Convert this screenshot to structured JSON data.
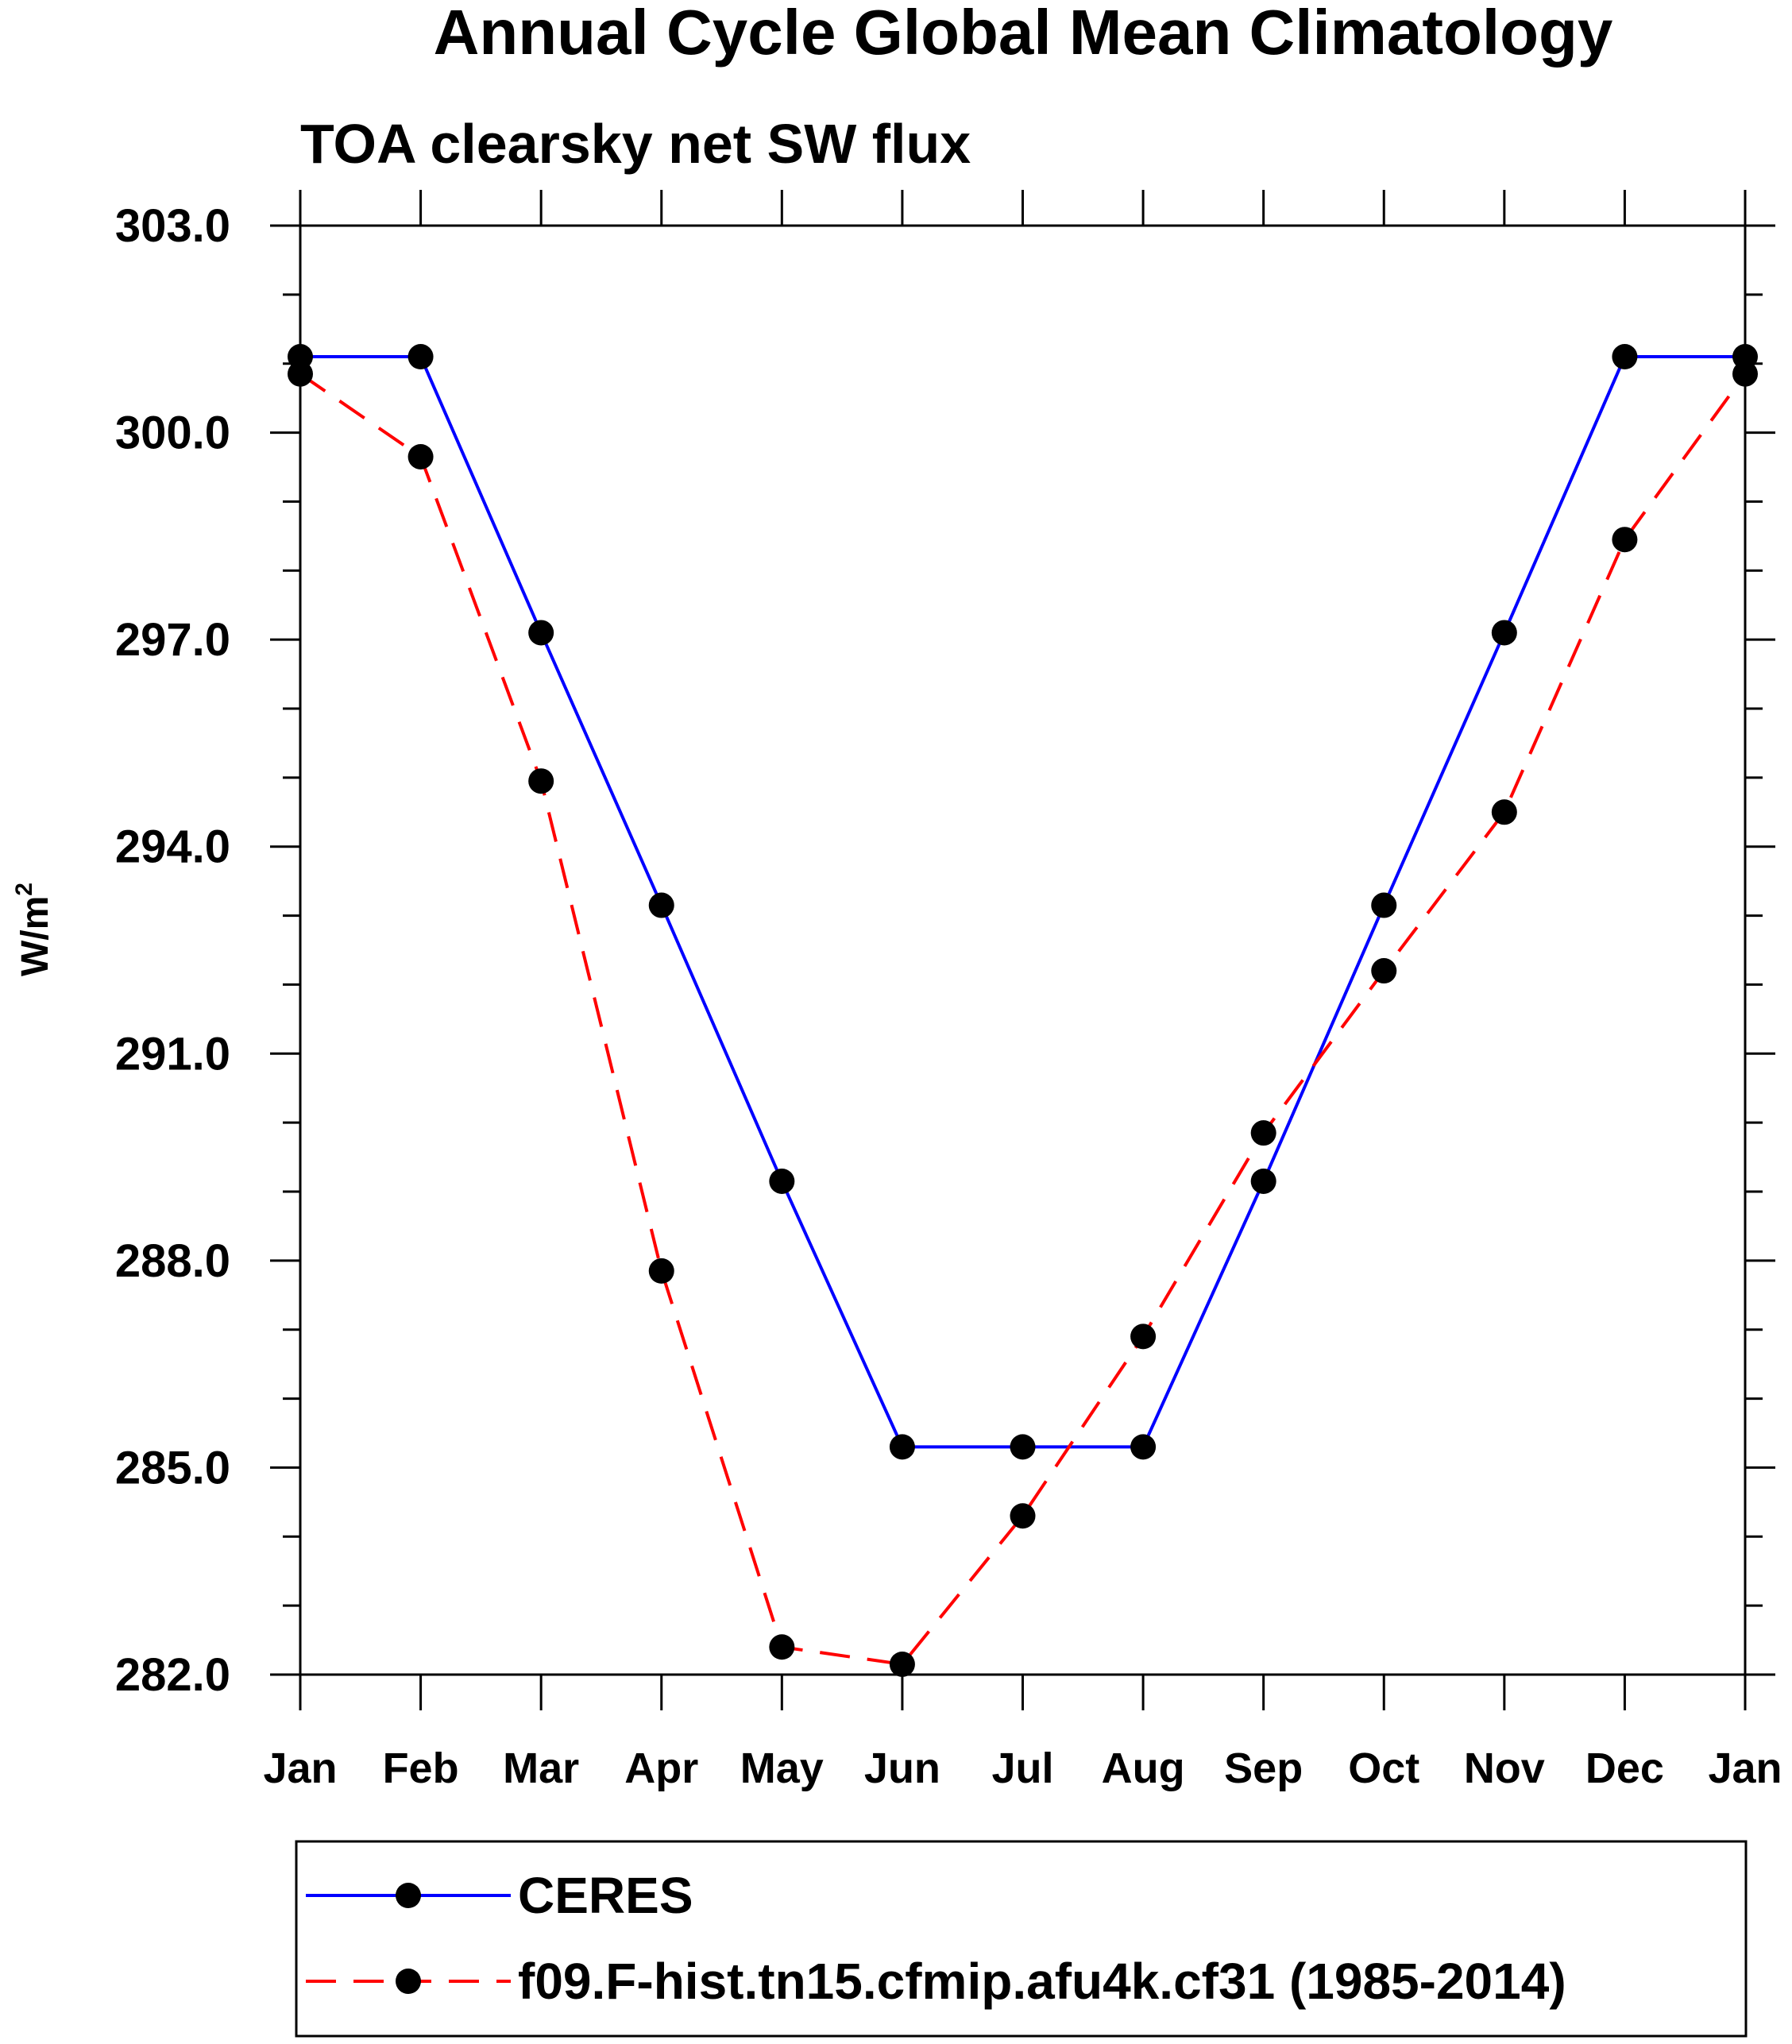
{
  "chart_data": {
    "type": "line",
    "title": "Annual Cycle Global Mean Climatology",
    "subtitle": "TOA clearsky net SW flux",
    "ylabel_base": "W/m",
    "ylabel_sup": "2",
    "xlabel": "",
    "categories": [
      "Jan",
      "Feb",
      "Mar",
      "Apr",
      "May",
      "Jun",
      "Jul",
      "Aug",
      "Sep",
      "Oct",
      "Nov",
      "Dec",
      "Jan"
    ],
    "ylim": [
      282.0,
      303.0
    ],
    "yticks": [
      282.0,
      285.0,
      288.0,
      291.0,
      294.0,
      297.0,
      300.0,
      303.0
    ],
    "ytick_labels": [
      "282.0",
      "285.0",
      "288.0",
      "291.0",
      "294.0",
      "297.0",
      "300.0",
      "303.0"
    ],
    "y_minor_step": 1.0,
    "grid": false,
    "legend_position": "bottom",
    "series": [
      {
        "name": "CERES",
        "color": "#0000ff",
        "dash": "solid",
        "marker": "circle",
        "values": [
          301.1,
          301.1,
          297.1,
          293.15,
          289.15,
          285.3,
          285.3,
          285.3,
          289.15,
          293.15,
          297.1,
          301.1,
          301.1
        ]
      },
      {
        "name": "f09.F-hist.tn15.cfmip.afu4k.cf31 (1985-2014)",
        "color": "#ff0000",
        "dash": "dashed",
        "marker": "circle",
        "values": [
          300.85,
          299.65,
          294.95,
          287.85,
          282.4,
          282.15,
          284.3,
          286.9,
          289.85,
          292.2,
          294.5,
          298.45,
          300.85
        ]
      }
    ]
  }
}
